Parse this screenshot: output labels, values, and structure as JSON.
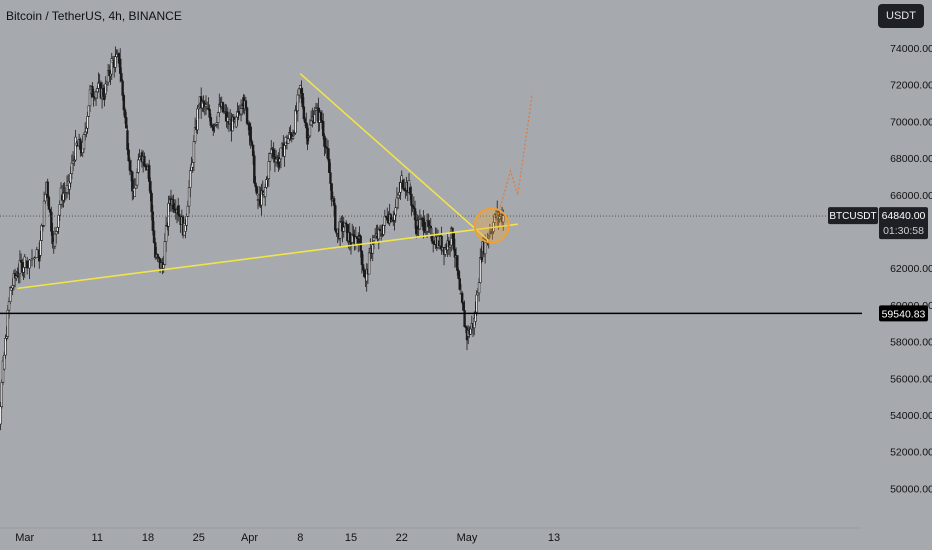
{
  "header": {
    "title": "Bitcoin / TetherUS, 4h, BINANCE"
  },
  "unit_button": "USDT",
  "price_scale": {
    "ticks": [
      "74000.00",
      "72000.00",
      "70000.00",
      "68000.00",
      "66000.00",
      "62000.00",
      "60000.00",
      "58000.00",
      "56000.00",
      "54000.00",
      "52000.00",
      "50000.00"
    ]
  },
  "time_axis": {
    "labels": [
      "Mar",
      "11",
      "18",
      "25",
      "Apr",
      "8",
      "15",
      "22",
      "May",
      "13"
    ]
  },
  "tags": {
    "symbol": "BTCUSDT",
    "price": "64840.00",
    "countdown": "01:30:58",
    "level": "59540.83"
  },
  "chart_data": {
    "type": "candlestick",
    "symbol": "BTCUSDT",
    "interval": "4h",
    "exchange": "BINANCE",
    "ylim": [
      49000,
      76000
    ],
    "last_price": 64840,
    "horizontal_level": 59540.83,
    "trendlines": [
      {
        "label": "",
        "from": [
          "2024-02-29",
          60900
        ],
        "to": [
          "2024-05-08",
          64400
        ]
      },
      {
        "label": "",
        "from": [
          "2024-04-08",
          72600
        ],
        "to": [
          "2024-05-04",
          63500
        ]
      }
    ],
    "projection": [
      [
        "2024-05-05",
        64500
      ],
      [
        "2024-05-07",
        67300
      ],
      [
        "2024-05-08",
        66000
      ],
      [
        "2024-05-10",
        71500
      ]
    ],
    "highlight": {
      "date": "2024-05-04",
      "price": 64000
    },
    "closes": [
      [
        "2024-02-23",
        51500
      ],
      [
        "2024-02-26",
        51200
      ],
      [
        "2024-02-27",
        56500
      ],
      [
        "2024-02-28",
        60800
      ],
      [
        "2024-02-29",
        61800
      ],
      [
        "2024-03-01",
        62400
      ],
      [
        "2024-03-03",
        62700
      ],
      [
        "2024-03-04",
        66700
      ],
      [
        "2024-03-05",
        63200
      ],
      [
        "2024-03-06",
        66000
      ],
      [
        "2024-03-07",
        66300
      ],
      [
        "2024-03-08",
        68700
      ],
      [
        "2024-03-09",
        68500
      ],
      [
        "2024-03-10",
        71500
      ],
      [
        "2024-03-11",
        71800
      ],
      [
        "2024-03-12",
        71500
      ],
      [
        "2024-03-13",
        73200
      ],
      [
        "2024-03-14",
        73400
      ],
      [
        "2024-03-15",
        69500
      ],
      [
        "2024-03-16",
        65900
      ],
      [
        "2024-03-17",
        68300
      ],
      [
        "2024-03-18",
        67600
      ],
      [
        "2024-03-19",
        62600
      ],
      [
        "2024-03-20",
        62000
      ],
      [
        "2024-03-21",
        65800
      ],
      [
        "2024-03-22",
        65400
      ],
      [
        "2024-03-23",
        64000
      ],
      [
        "2024-03-24",
        67500
      ],
      [
        "2024-03-25",
        71000
      ],
      [
        "2024-03-26",
        70700
      ],
      [
        "2024-03-27",
        69800
      ],
      [
        "2024-03-28",
        70800
      ],
      [
        "2024-03-29",
        70000
      ],
      [
        "2024-03-30",
        69700
      ],
      [
        "2024-03-31",
        71300
      ],
      [
        "2024-04-01",
        69700
      ],
      [
        "2024-04-02",
        65700
      ],
      [
        "2024-04-03",
        65900
      ],
      [
        "2024-04-04",
        68500
      ],
      [
        "2024-04-05",
        67800
      ],
      [
        "2024-04-06",
        68900
      ],
      [
        "2024-04-07",
        69400
      ],
      [
        "2024-04-08",
        71800
      ],
      [
        "2024-04-09",
        69200
      ],
      [
        "2024-04-10",
        70600
      ],
      [
        "2024-04-11",
        70000
      ],
      [
        "2024-04-12",
        67200
      ],
      [
        "2024-04-13",
        63900
      ],
      [
        "2024-04-14",
        64300
      ],
      [
        "2024-04-15",
        63400
      ],
      [
        "2024-04-16",
        63800
      ],
      [
        "2024-04-17",
        61300
      ],
      [
        "2024-04-18",
        63500
      ],
      [
        "2024-04-19",
        63800
      ],
      [
        "2024-04-20",
        64900
      ],
      [
        "2024-04-21",
        64900
      ],
      [
        "2024-04-22",
        66800
      ],
      [
        "2024-04-23",
        66400
      ],
      [
        "2024-04-24",
        64300
      ],
      [
        "2024-04-25",
        64500
      ],
      [
        "2024-04-26",
        63800
      ],
      [
        "2024-04-27",
        63500
      ],
      [
        "2024-04-28",
        63100
      ],
      [
        "2024-04-29",
        63900
      ],
      [
        "2024-04-30",
        60600
      ],
      [
        "2024-05-01",
        58300
      ],
      [
        "2024-05-02",
        59100
      ],
      [
        "2024-05-03",
        62900
      ],
      [
        "2024-05-04",
        63900
      ],
      [
        "2024-05-05",
        64800
      ],
      [
        "2024-05-06",
        64840
      ]
    ]
  }
}
